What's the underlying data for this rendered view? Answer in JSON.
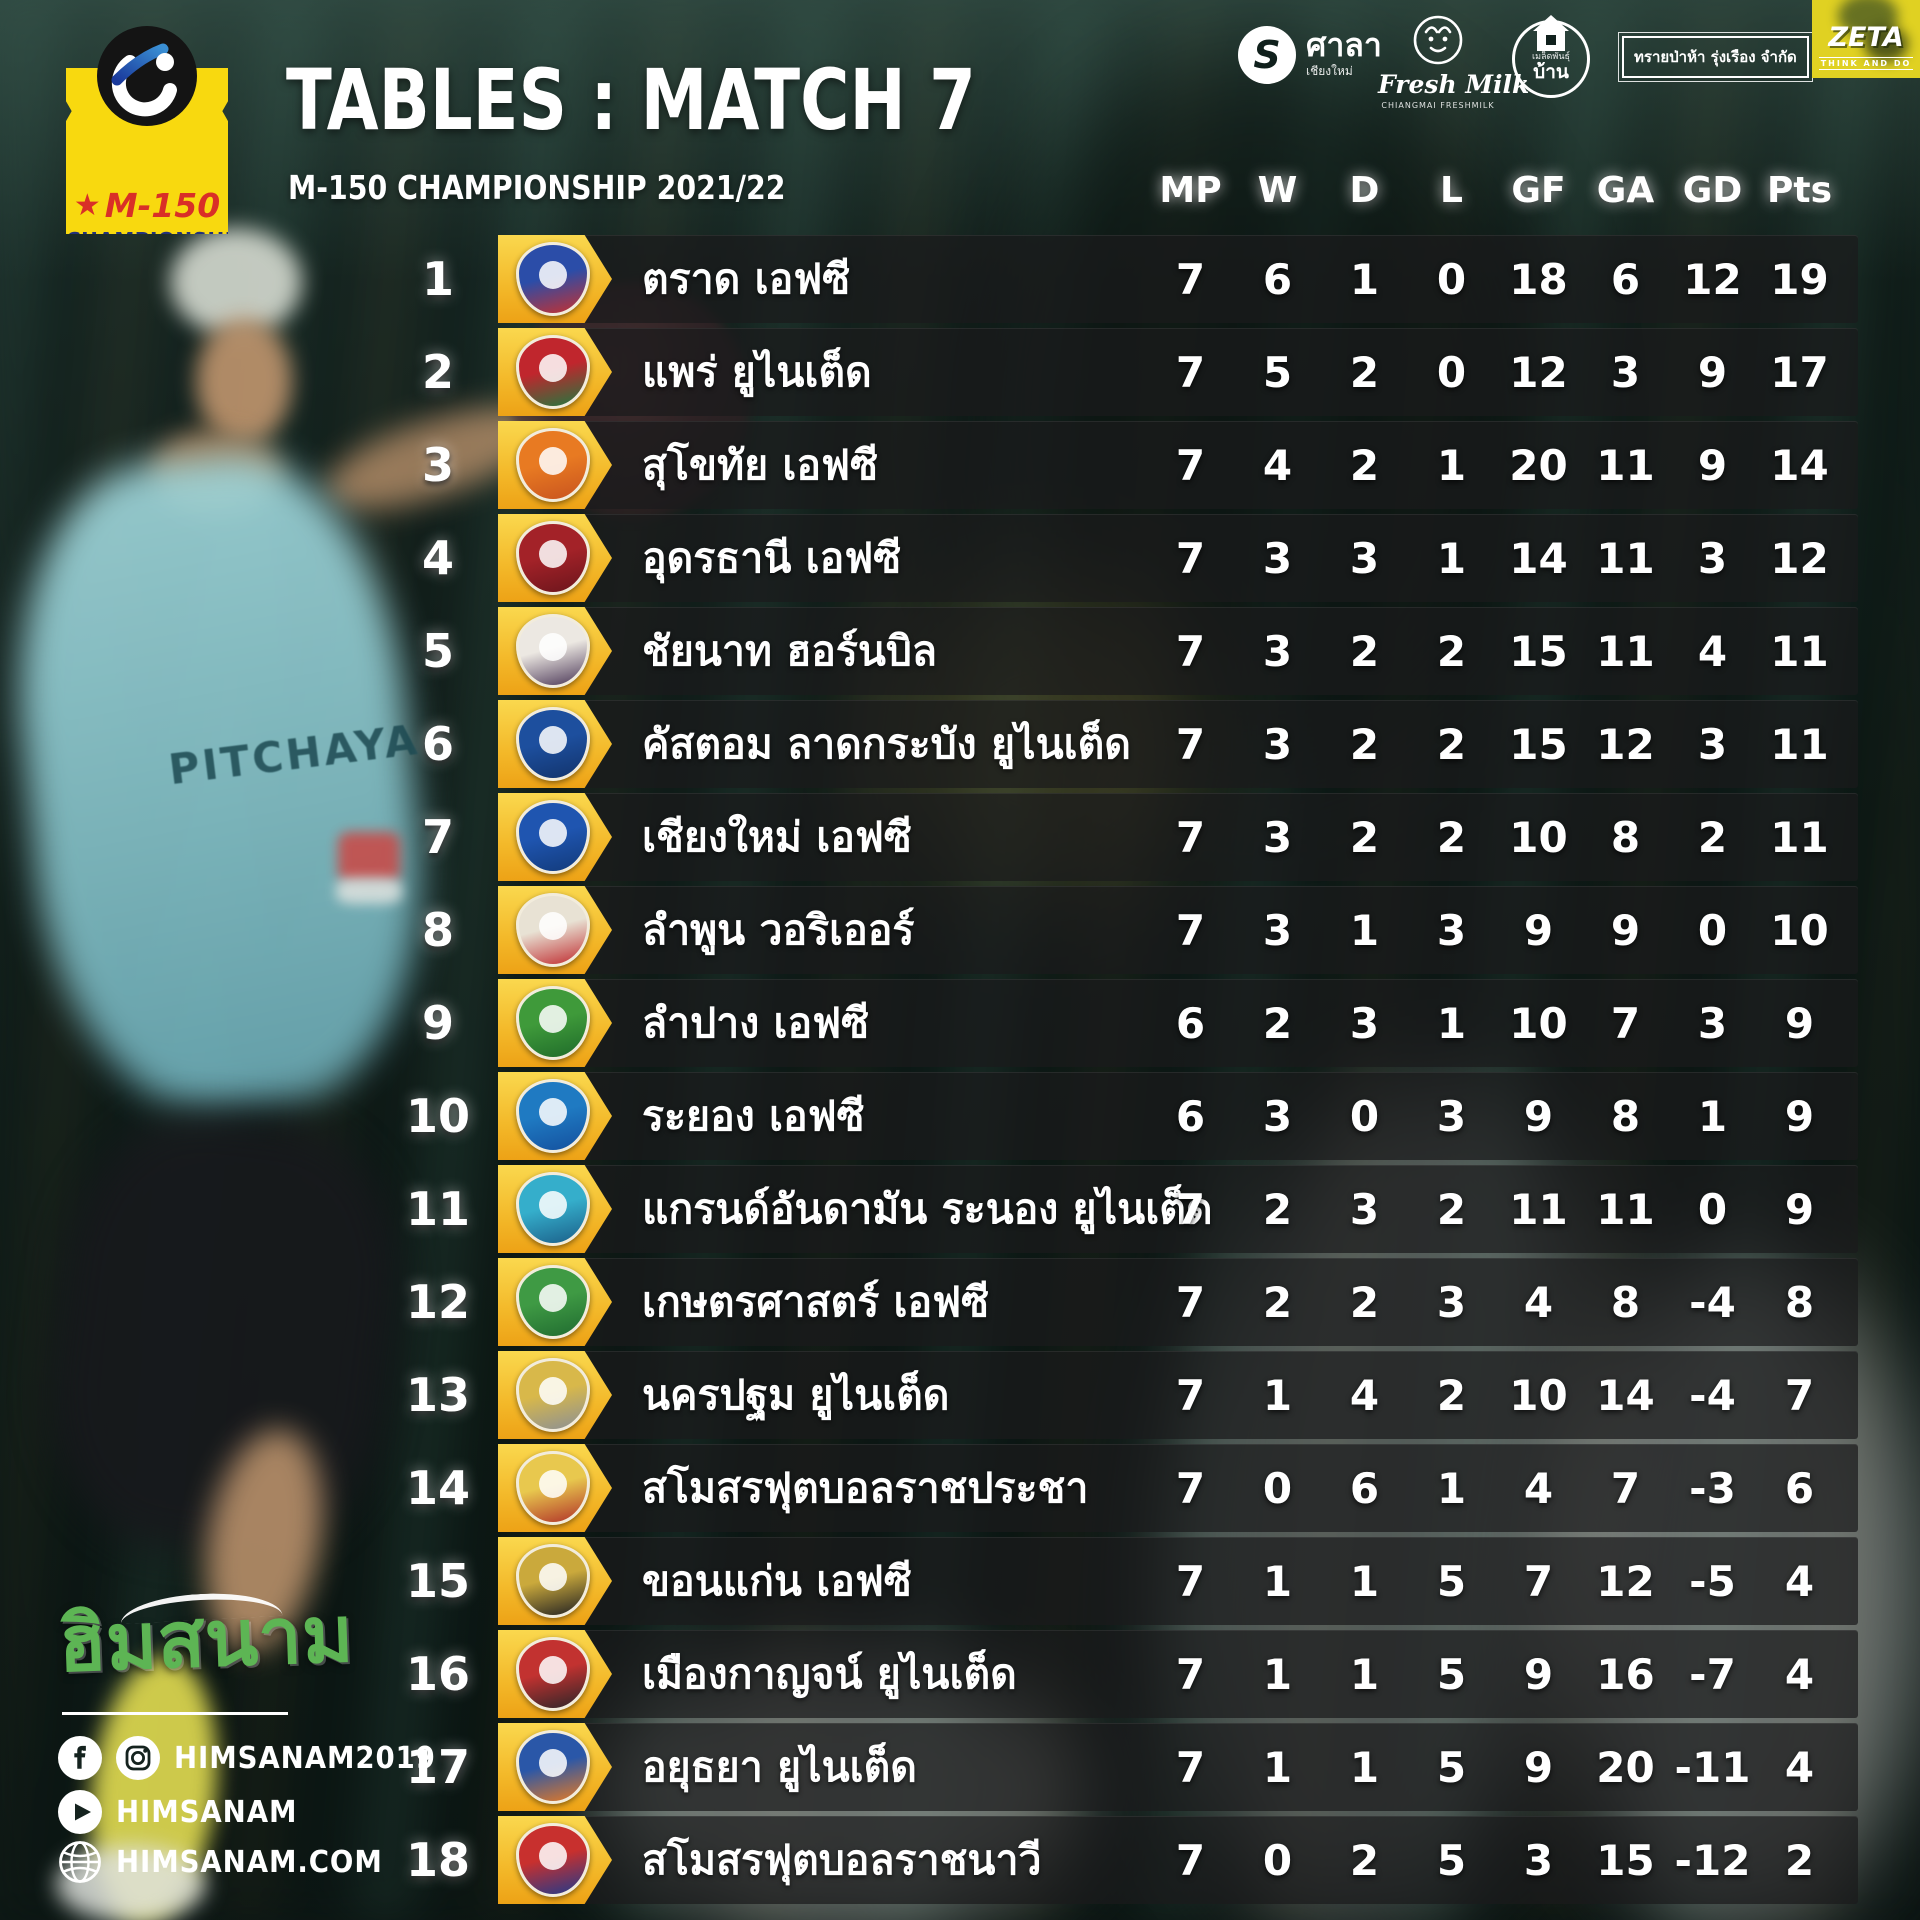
{
  "header": {
    "league_badge": {
      "m150": "M-150",
      "championship": "CHAMPIONSHIP"
    },
    "title": "TABLES : MATCH 7",
    "subtitle": "M-150 CHAMPIONSHIP 2021/22"
  },
  "sponsors": {
    "sala": {
      "icon_letter": "S",
      "label": "ศาลา",
      "sublabel": "เชียงใหม่"
    },
    "freshmilk": {
      "label": "Fresh Milk",
      "sublabel": "CHIANGMAI FRESHMILK"
    },
    "baan": {
      "sublabel": "เมล็ดพันธุ์",
      "label": "บ้าน"
    },
    "saipaha": {
      "label": "ทรายป่าห้า รุ่งเรือง จำกัด"
    },
    "zeta": {
      "label": "ZETA",
      "sublabel": "THINK AND DO"
    }
  },
  "background": {
    "jersey_text": "PITCHAYA"
  },
  "table": {
    "badge_colors": [
      [
        "#2b4da8",
        "#c8302e"
      ],
      [
        "#c0262d",
        "#1e7a3f"
      ],
      [
        "#e87a22",
        "#c8531e"
      ],
      [
        "#a32228",
        "#6b151c"
      ],
      [
        "#ece8e2",
        "#4a3656"
      ],
      [
        "#1d4f9e",
        "#12336b"
      ],
      [
        "#1f55b0",
        "#123a7a"
      ],
      [
        "#e8e2d4",
        "#bf2a2e"
      ],
      [
        "#3f9a3a",
        "#1f6b2a"
      ],
      [
        "#1f7ac2",
        "#14509e"
      ],
      [
        "#35aecb",
        "#1b5e88"
      ],
      [
        "#3f9a44",
        "#206b30"
      ],
      [
        "#d8b84a",
        "#8a8f96"
      ],
      [
        "#e8c84e",
        "#b03028"
      ],
      [
        "#caa93c",
        "#1f1f22"
      ],
      [
        "#c23230",
        "#2a2528"
      ],
      [
        "#2a57a8",
        "#e87a22"
      ],
      [
        "#c8302e",
        "#1f3a8c"
      ]
    ],
    "row_accent_color": "#f3b829"
  },
  "footer": {
    "logo": "ฮิมสนาม",
    "social": {
      "row1": "HIMSANAM2019",
      "row2": "HIMSANAM",
      "row3": "HIMSANAM.COM"
    }
  },
  "chart_data": {
    "type": "table",
    "title": "TABLES : MATCH 7",
    "subtitle": "M-150 CHAMPIONSHIP 2021/22",
    "row_fields": [
      "rank",
      "team"
    ],
    "columns": [
      "MP",
      "W",
      "D",
      "L",
      "GF",
      "GA",
      "GD",
      "Pts"
    ],
    "rows": [
      [
        1,
        "ตราด เอฟซี",
        7,
        6,
        1,
        0,
        18,
        6,
        12,
        19
      ],
      [
        2,
        "แพร่ ยูไนเต็ด",
        7,
        5,
        2,
        0,
        12,
        3,
        9,
        17
      ],
      [
        3,
        "สุโขทัย เอฟซี",
        7,
        4,
        2,
        1,
        20,
        11,
        9,
        14
      ],
      [
        4,
        "อุดรธานี เอฟซี",
        7,
        3,
        3,
        1,
        14,
        11,
        3,
        12
      ],
      [
        5,
        "ชัยนาท ฮอร์นบิล",
        7,
        3,
        2,
        2,
        15,
        11,
        4,
        11
      ],
      [
        6,
        "คัสตอม ลาดกระบัง ยูไนเต็ด",
        7,
        3,
        2,
        2,
        15,
        12,
        3,
        11
      ],
      [
        7,
        "เชียงใหม่ เอฟซี",
        7,
        3,
        2,
        2,
        10,
        8,
        2,
        11
      ],
      [
        8,
        "ลำพูน วอริเออร์",
        7,
        3,
        1,
        3,
        9,
        9,
        0,
        10
      ],
      [
        9,
        "ลำปาง เอฟซี",
        6,
        2,
        3,
        1,
        10,
        7,
        3,
        9
      ],
      [
        10,
        "ระยอง เอฟซี",
        6,
        3,
        0,
        3,
        9,
        8,
        1,
        9
      ],
      [
        11,
        "แกรนด์อันดามัน ระนอง ยูไนเต็ด",
        7,
        2,
        3,
        2,
        11,
        11,
        0,
        9
      ],
      [
        12,
        "เกษตรศาสตร์ เอฟซี",
        7,
        2,
        2,
        3,
        4,
        8,
        -4,
        8
      ],
      [
        13,
        "นครปฐม ยูไนเต็ด",
        7,
        1,
        4,
        2,
        10,
        14,
        -4,
        7
      ],
      [
        14,
        "สโมสรฟุตบอลราชประชา",
        7,
        0,
        6,
        1,
        4,
        7,
        -3,
        6
      ],
      [
        15,
        "ขอนแก่น เอฟซี",
        7,
        1,
        1,
        5,
        7,
        12,
        -5,
        4
      ],
      [
        16,
        "เมืองกาญจน์ ยูไนเต็ด",
        7,
        1,
        1,
        5,
        9,
        16,
        -7,
        4
      ],
      [
        17,
        "อยุธยา ยูไนเต็ด",
        7,
        1,
        1,
        5,
        9,
        20,
        -11,
        4
      ],
      [
        18,
        "สโมสรฟุตบอลราชนาวี",
        7,
        0,
        2,
        5,
        3,
        15,
        -12,
        2
      ]
    ]
  }
}
